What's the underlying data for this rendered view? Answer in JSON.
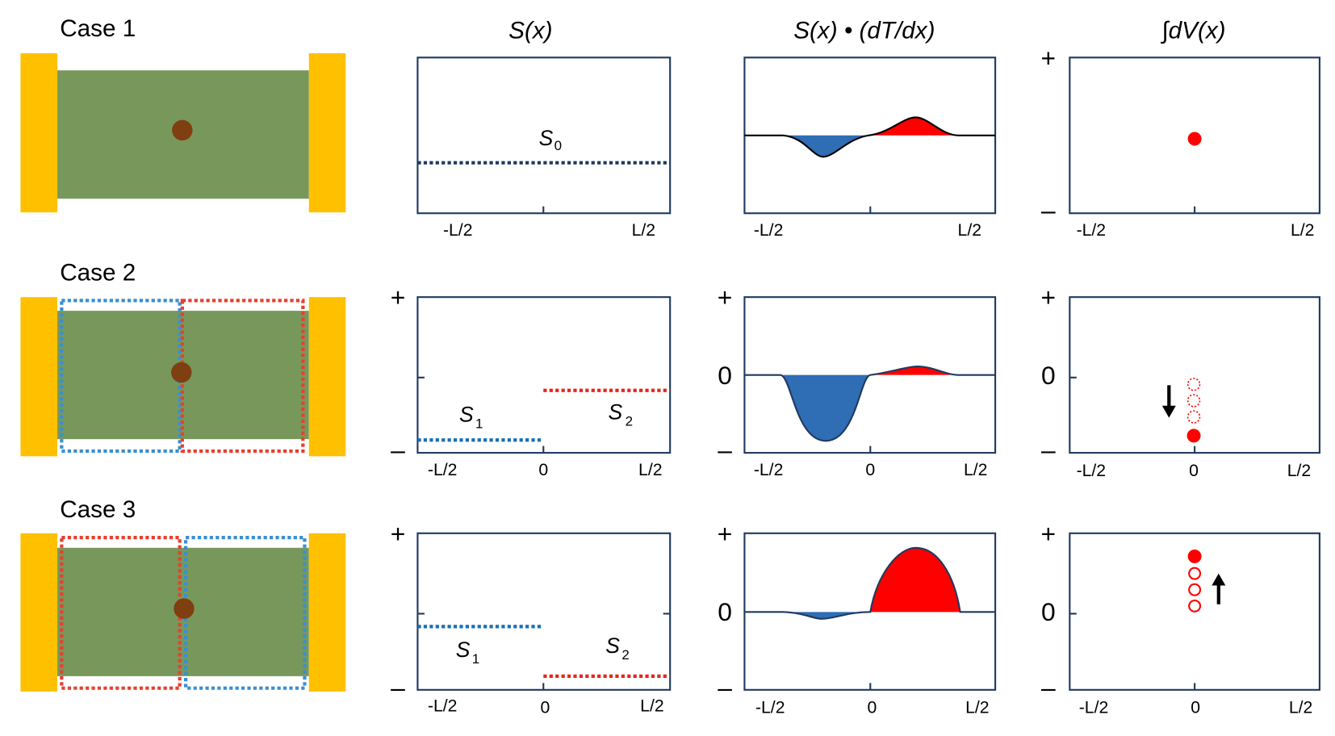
{
  "column_headers": [
    "S(x)",
    "S(x) • (dT/dx)",
    "∫dV(x)"
  ],
  "rows": [
    {
      "case": "Case 1",
      "profile": {
        "labels": [
          {
            "symbol": "S",
            "subscript": "0"
          }
        ],
        "x_labels": [
          "-L/2",
          "L/2"
        ]
      },
      "product": {
        "x_labels": [
          "-L/2",
          "L/2"
        ]
      },
      "voltage": {
        "y_labels": [
          "+",
          "–"
        ],
        "x_labels": [
          "-L/2",
          "L/2"
        ]
      }
    },
    {
      "case": "Case 2",
      "profile": {
        "y_labels": [
          "+",
          "–"
        ],
        "labels": [
          {
            "symbol": "S",
            "subscript": "1"
          },
          {
            "symbol": "S",
            "subscript": "2"
          }
        ],
        "x_labels": [
          "-L/2",
          "0",
          "L/2"
        ]
      },
      "product": {
        "y_labels": [
          "+",
          "0",
          "–"
        ],
        "x_labels": [
          "-L/2",
          "0",
          "L/2"
        ]
      },
      "voltage": {
        "y_labels": [
          "+",
          "0",
          "–"
        ],
        "x_labels": [
          "-L/2",
          "0",
          "L/2"
        ]
      }
    },
    {
      "case": "Case 3",
      "profile": {
        "y_labels": [
          "+",
          "–"
        ],
        "labels": [
          {
            "symbol": "S",
            "subscript": "1"
          },
          {
            "symbol": "S",
            "subscript": "2"
          }
        ],
        "x_labels": [
          "-L/2",
          "0",
          "L/2"
        ]
      },
      "product": {
        "y_labels": [
          "+",
          "0",
          "–"
        ],
        "x_labels": [
          "-L/2",
          "0",
          "L/2"
        ]
      },
      "voltage": {
        "y_labels": [
          "+",
          "0",
          "–"
        ],
        "x_labels": [
          "-L/2",
          "0",
          "L/2"
        ]
      }
    }
  ]
}
